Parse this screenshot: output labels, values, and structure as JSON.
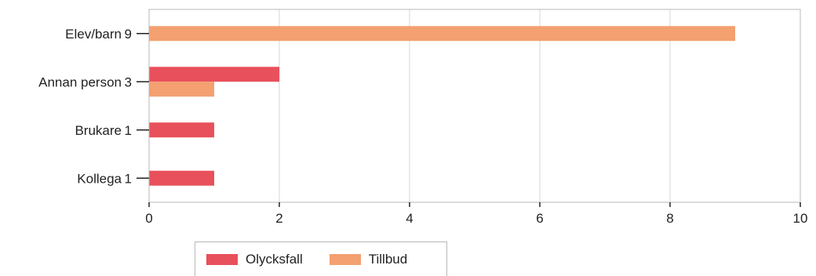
{
  "chart_data": {
    "type": "bar",
    "orientation": "horizontal",
    "categories": [
      "Elev/barn",
      "Annan person",
      "Brukare",
      "Kollega"
    ],
    "category_totals": [
      "9",
      "3",
      "1",
      "1"
    ],
    "series": [
      {
        "name": "Olycksfall",
        "color": "#e8505b",
        "values": [
          0,
          2,
          1,
          1
        ]
      },
      {
        "name": "Tillbud",
        "color": "#f4a070",
        "values": [
          9,
          1,
          0,
          0
        ]
      }
    ],
    "xlim": [
      0,
      10
    ],
    "xticks": [
      "0",
      "2",
      "4",
      "6",
      "8",
      "10"
    ],
    "grid": true,
    "legend_position": "bottom"
  }
}
